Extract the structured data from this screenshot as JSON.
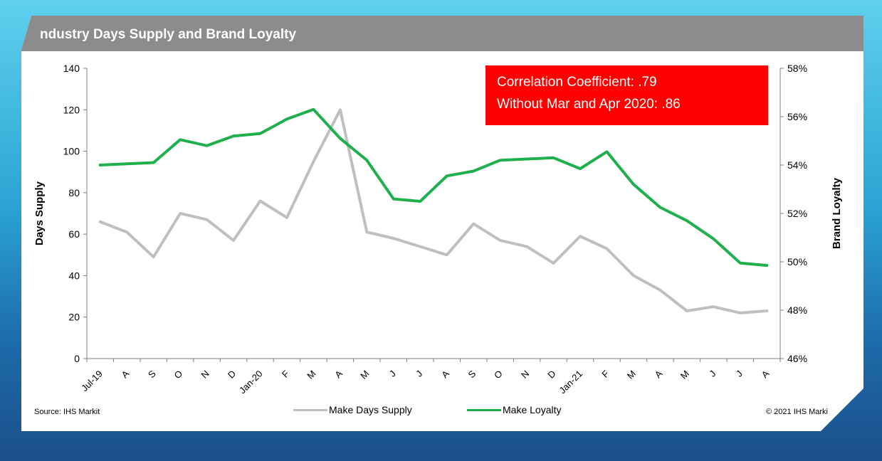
{
  "title": "ndustry Days Supply and Brand Loyalty",
  "annotation": {
    "line1": "Correlation Coefficient: .79",
    "line2": "Without Mar and Apr 2020: .86"
  },
  "source": "Source: IHS Markit",
  "copyright": "© 2021 IHS Marki",
  "chart_data": {
    "type": "line",
    "categories": [
      "Jul-19",
      "A",
      "S",
      "O",
      "N",
      "D",
      "Jan-20",
      "F",
      "M",
      "A",
      "M",
      "J",
      "J",
      "A",
      "S",
      "O",
      "N",
      "D",
      "Jan-21",
      "F",
      "M",
      "A",
      "M",
      "J",
      "J",
      "A"
    ],
    "series": [
      {
        "name": "Make Days Supply",
        "axis": "left",
        "color": "#bfbfbf",
        "values": [
          66,
          61,
          49,
          70,
          67,
          57,
          76,
          68,
          95,
          120,
          61,
          58,
          54,
          50,
          65,
          57,
          54,
          46,
          59,
          53,
          40,
          33,
          23,
          25,
          22,
          23
        ]
      },
      {
        "name": "Make Loyalty",
        "axis": "right",
        "color": "#1fb04d",
        "values": [
          54.0,
          54.05,
          54.1,
          55.05,
          54.8,
          55.2,
          55.3,
          55.9,
          56.3,
          55.1,
          54.2,
          52.6,
          52.5,
          53.55,
          53.75,
          54.2,
          54.25,
          54.3,
          53.85,
          54.55,
          53.2,
          52.25,
          51.7,
          50.95,
          49.95,
          49.85
        ]
      }
    ],
    "ylabel": "Days Supply",
    "ylim": [
      0,
      140
    ],
    "yticks": [
      "0",
      "20",
      "40",
      "60",
      "80",
      "100",
      "120",
      "140"
    ],
    "y2label": "Brand Loyalty",
    "y2lim": [
      46,
      58
    ],
    "y2ticks": [
      "46%",
      "48%",
      "50%",
      "52%",
      "54%",
      "56%",
      "58%"
    ],
    "grid": false,
    "legend_position": "bottom"
  }
}
